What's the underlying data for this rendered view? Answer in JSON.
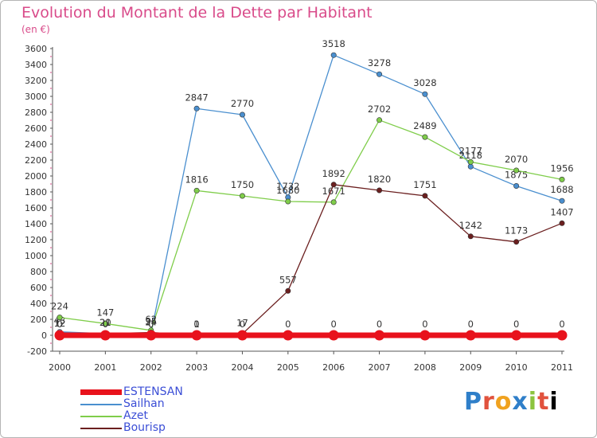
{
  "header": {
    "title": "Evolution du Montant de la Dette par Habitant",
    "subtitle": "(en €)"
  },
  "logo": {
    "text": "Proxiti"
  },
  "colors": {
    "title": "#d94b8a",
    "axis": "#555555",
    "grid_tick": "#d94b8a",
    "legend_text": "#3b4ed6"
  },
  "chart_data": {
    "type": "line",
    "x": [
      "2000",
      "2001",
      "2002",
      "2003",
      "2004",
      "2005",
      "2006",
      "2007",
      "2008",
      "2009",
      "2010",
      "2011"
    ],
    "ylim": [
      -200,
      3600
    ],
    "yticks": [
      "-200",
      "0",
      "200",
      "400",
      "600",
      "800",
      "1000",
      "1200",
      "1400",
      "1600",
      "1800",
      "2000",
      "2200",
      "2400",
      "2600",
      "2800",
      "3000",
      "3200",
      "3400",
      "3600"
    ],
    "series": [
      {
        "name": "Sailhan",
        "color": "#4a8fcf",
        "values": [
          43,
          20,
          24,
          2847,
          2770,
          1732,
          3518,
          3278,
          3028,
          2118,
          1875,
          1688
        ],
        "labels": [
          "43",
          "20",
          "24",
          "2847",
          "2770",
          "1732",
          "3518",
          "3278",
          "3028",
          "2118",
          "1875",
          "1688"
        ]
      },
      {
        "name": "Azet",
        "color": "#7fcd4a",
        "values": [
          224,
          147,
          62,
          1816,
          1750,
          1680,
          1671,
          2702,
          2489,
          2177,
          2070,
          1956
        ],
        "labels": [
          "224",
          "147",
          "62",
          "1816",
          "1750",
          "1680",
          "1671",
          "2702",
          "2489",
          "2177",
          "2070",
          "1956"
        ]
      },
      {
        "name": "Bourisp",
        "color": "#6b1f1f",
        "values": [
          12,
          21,
          35,
          1,
          17,
          557,
          1892,
          1820,
          1751,
          1242,
          1173,
          1407
        ],
        "labels": [
          "12",
          "21",
          "35",
          "1",
          "17",
          "557",
          "1892",
          "1820",
          "1751",
          "1242",
          "1173",
          "1407"
        ]
      },
      {
        "name": "ESTENSAN",
        "color": "#e8121c",
        "values": [
          0,
          0,
          0,
          0,
          0,
          0,
          0,
          0,
          0,
          0,
          0,
          0
        ],
        "labels": [
          "0",
          "0",
          "0",
          "0",
          "0",
          "0",
          "0",
          "0",
          "0",
          "0",
          "0",
          "0"
        ]
      }
    ],
    "legend": [
      {
        "name": "ESTENSAN",
        "color": "#e8121c"
      },
      {
        "name": "Sailhan",
        "color": "#4a8fcf"
      },
      {
        "name": "Azet",
        "color": "#7fcd4a"
      },
      {
        "name": "Bourisp",
        "color": "#6b1f1f"
      }
    ]
  }
}
